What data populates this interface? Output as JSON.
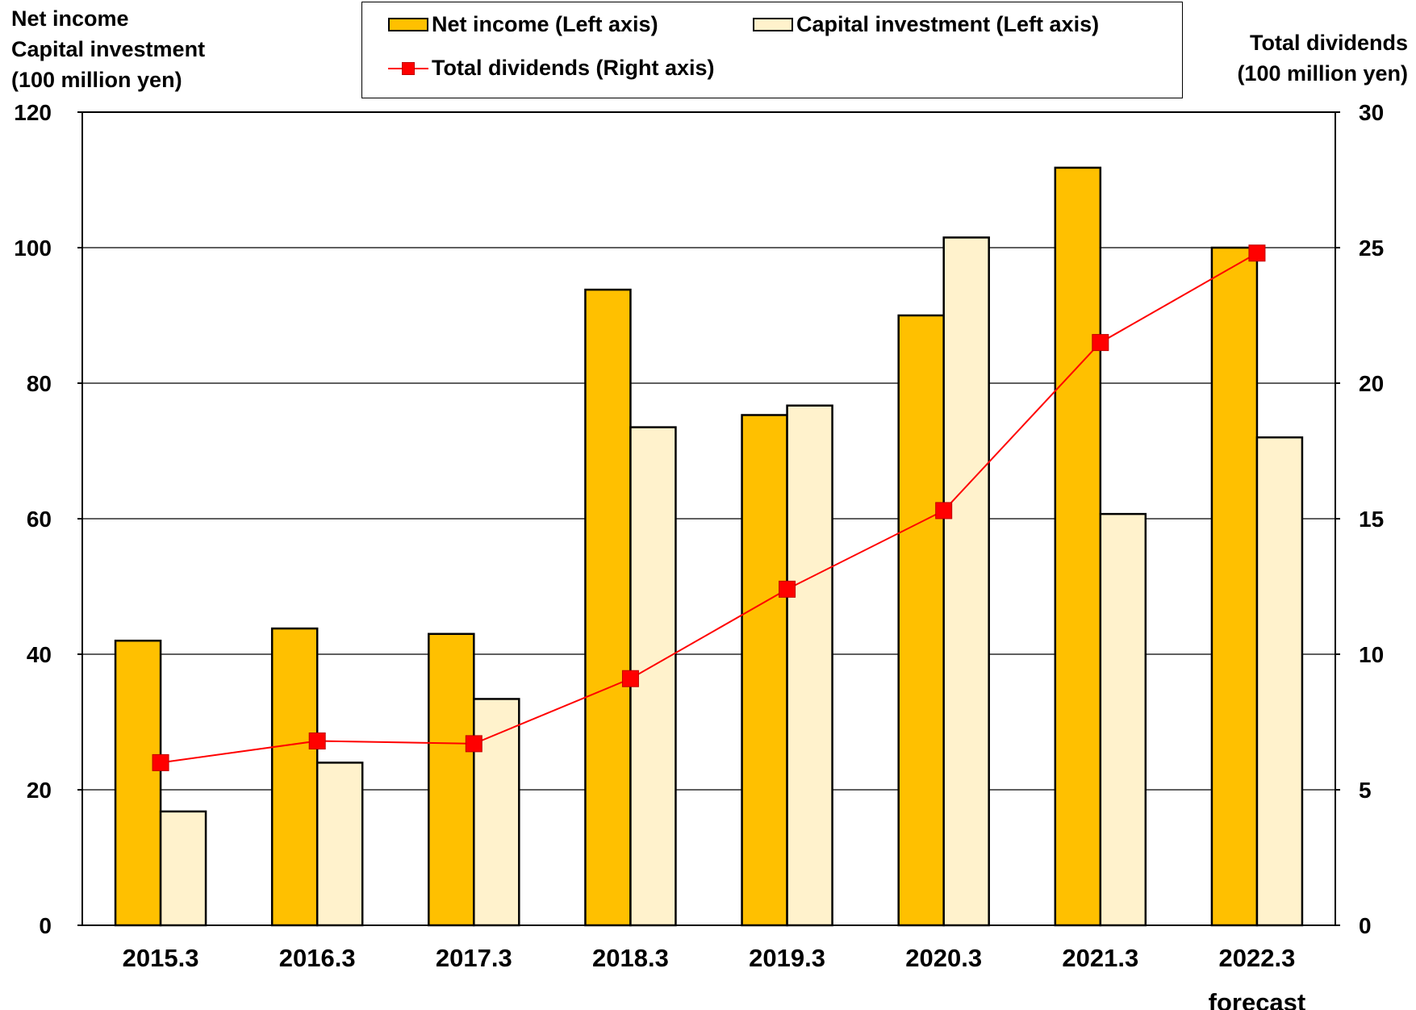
{
  "chart_data": {
    "type": "bar",
    "categories": [
      "2015.3",
      "2016.3",
      "2017.3",
      "2018.3",
      "2019.3",
      "2020.3",
      "2021.3",
      "2022.3\nforecast"
    ],
    "series": [
      {
        "name": "Net income (Left axis)",
        "type": "bar",
        "axis": "left",
        "color": "#FFC000",
        "values": [
          42,
          43.8,
          43,
          93.8,
          75.3,
          90,
          111.8,
          100
        ]
      },
      {
        "name": "Capital investment (Left axis)",
        "type": "bar",
        "axis": "left",
        "color": "#FFF2CC",
        "values": [
          16.8,
          24,
          33.4,
          73.5,
          76.7,
          101.5,
          60.7,
          72
        ]
      },
      {
        "name": "Total dividends (Right axis)",
        "type": "line",
        "axis": "right",
        "color": "#FF0000",
        "values": [
          6,
          6.8,
          6.7,
          9.1,
          12.4,
          15.3,
          21.5,
          24.8
        ]
      }
    ],
    "y_left": {
      "label_lines": [
        "Net income",
        "Capital investment",
        "(100 million yen)"
      ],
      "ylim": [
        0,
        120
      ],
      "ticks": [
        "0",
        "20",
        "40",
        "60",
        "80",
        "100",
        "120"
      ]
    },
    "y_right": {
      "label_lines": [
        "Total dividends",
        "(100 million yen)"
      ],
      "ylim": [
        0,
        30
      ],
      "ticks": [
        "0",
        "5",
        "10",
        "15",
        "20",
        "25",
        "30"
      ]
    },
    "grid": true,
    "legend_position": "top"
  }
}
